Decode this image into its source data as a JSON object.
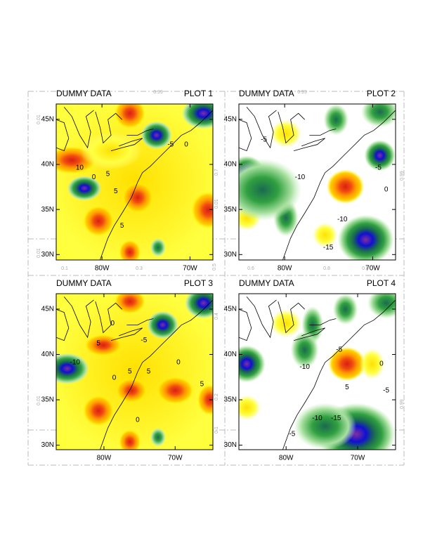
{
  "panels": [
    {
      "left_title": "DUMMY DATA",
      "right_title": "PLOT 1",
      "lon_range": [
        -85.2,
        -67.4
      ],
      "lat_range": [
        29.4,
        46.7
      ],
      "lat_ticks": [
        {
          "value": 45,
          "label": "45N"
        },
        {
          "value": 40,
          "label": "40N"
        },
        {
          "value": 35,
          "label": "35N"
        },
        {
          "value": 30,
          "label": "30N"
        }
      ],
      "lon_ticks": [
        {
          "value": -80,
          "label": "80W"
        },
        {
          "value": -70,
          "label": "70W"
        }
      ],
      "contour_labels": [
        "-5",
        "0",
        "10",
        "5",
        "0",
        "5",
        "5"
      ]
    },
    {
      "left_title": "DUMMY DATA",
      "right_title": "PLOT 2",
      "lon_range": [
        -85.2,
        -67.4
      ],
      "lat_range": [
        29.4,
        46.7
      ],
      "lat_ticks": [
        {
          "value": 45,
          "label": "45N"
        },
        {
          "value": 40,
          "label": "40N"
        },
        {
          "value": 35,
          "label": "35N"
        },
        {
          "value": 30,
          "label": "30N"
        }
      ],
      "lon_ticks": [
        {
          "value": -80,
          "label": "80W"
        },
        {
          "value": -70,
          "label": "70W"
        }
      ],
      "contour_labels": [
        "-5",
        "-10",
        "-5",
        "0",
        "-10",
        "-15"
      ]
    },
    {
      "left_title": "DUMMY DATA",
      "right_title": "PLOT 3",
      "lon_range": [
        -86.7,
        -64.7
      ],
      "lat_range": [
        29.5,
        46.7
      ],
      "lat_ticks": [
        {
          "value": 45,
          "label": "45N"
        },
        {
          "value": 40,
          "label": "40N"
        },
        {
          "value": 35,
          "label": "35N"
        },
        {
          "value": 30,
          "label": "30N"
        }
      ],
      "lon_ticks": [
        {
          "value": -80,
          "label": "80W"
        },
        {
          "value": -70,
          "label": "70W"
        }
      ],
      "contour_labels": [
        "0",
        "5",
        "-5",
        "0",
        "-10",
        "0",
        "5",
        "5",
        "5",
        "0"
      ]
    },
    {
      "left_title": "DUMMY DATA",
      "right_title": "PLOT 4",
      "lon_range": [
        -86.6,
        -64.7
      ],
      "lat_range": [
        29.5,
        46.7
      ],
      "lat_ticks": [
        {
          "value": 45,
          "label": "45N"
        },
        {
          "value": 40,
          "label": "40N"
        },
        {
          "value": 35,
          "label": "35N"
        },
        {
          "value": 30,
          "label": "30N"
        }
      ],
      "lon_ticks": [
        {
          "value": -80,
          "label": "80W"
        },
        {
          "value": -70,
          "label": "70W"
        }
      ],
      "contour_labels": [
        "-5",
        "-10",
        "0",
        "5",
        "-5",
        "-10",
        "-15",
        "-5"
      ]
    }
  ],
  "background_labels": [
    "0.99",
    "0.99",
    "0.01",
    "0.01",
    "0.1",
    "0.3",
    "0.5",
    "0.6",
    "0.8",
    "0.9",
    "0.99",
    "0.01",
    "0.01",
    "0.2",
    "0.1",
    "0.99",
    "0.7",
    "0.4"
  ]
}
